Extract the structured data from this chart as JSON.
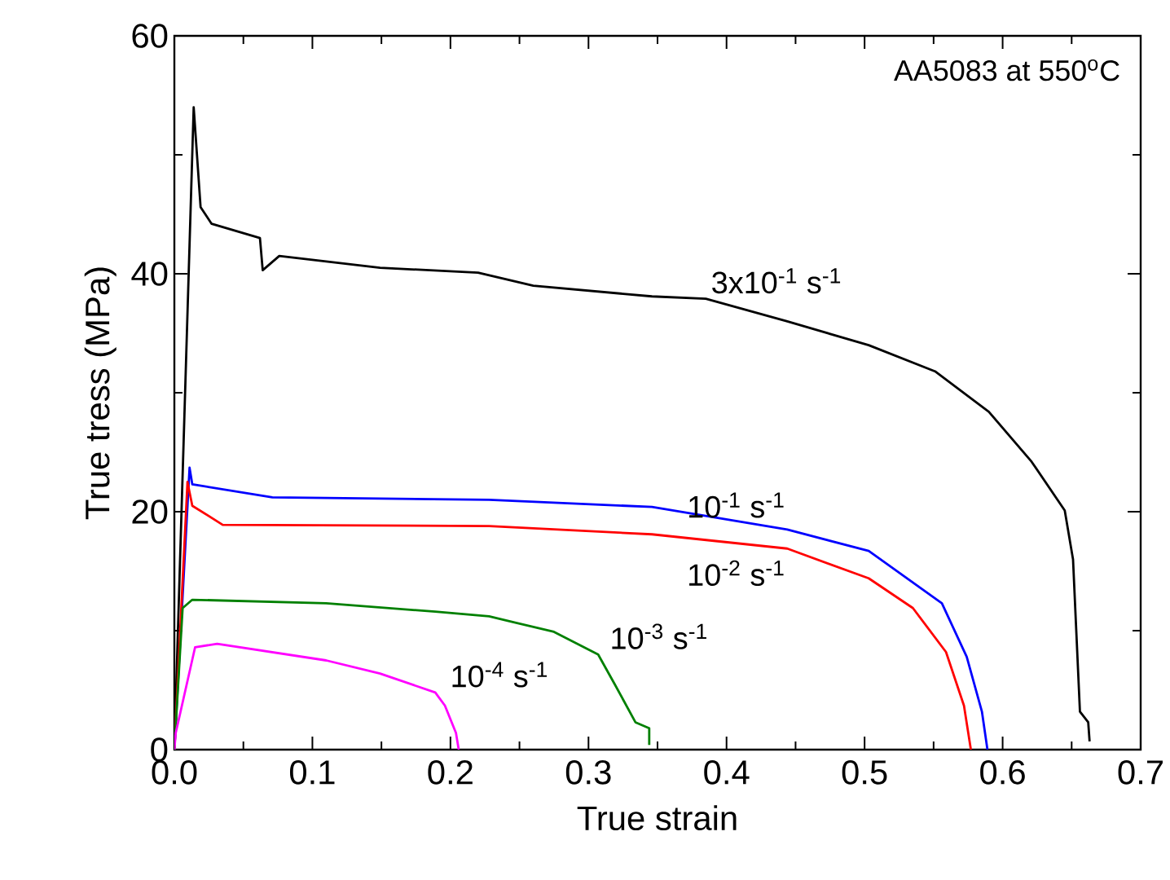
{
  "chart_data": {
    "type": "line",
    "xlabel": "True strain",
    "ylabel": "True tress (MPa)",
    "xlim": [
      0,
      0.7
    ],
    "ylim": [
      0,
      60
    ],
    "xticks": [
      {
        "value": 0,
        "label": "0.0"
      },
      0.1,
      0.2,
      0.3,
      0.4,
      0.5,
      0.6,
      0.7
    ],
    "yticks": [
      0,
      20,
      40,
      60
    ],
    "grid": false,
    "marker": "none",
    "line_style": "solid",
    "series": [
      {
        "name": "3x10$^{-1}$ s$^{-1}$",
        "color": "#000000",
        "x": [
          0,
          0.014,
          0.019,
          0.027,
          0.062,
          0.064,
          0.076,
          0.149,
          0.22,
          0.26,
          0.346,
          0.385,
          0.444,
          0.503,
          0.551,
          0.59,
          0.621,
          0.645,
          0.651,
          0.656,
          0.662,
          0.663
        ],
        "values": [
          0,
          54,
          45.6,
          44.2,
          43,
          40.3,
          41.5,
          40.5,
          40.1,
          39,
          38.1,
          37.9,
          36,
          34,
          31.8,
          28.4,
          24.2,
          20.1,
          16,
          3.2,
          2.3,
          0.7
        ]
      },
      {
        "name": "10$^{-1}$ s$^{-1}$",
        "color": "#0000ff",
        "x": [
          0,
          0.011,
          0.013,
          0.071,
          0.228,
          0.346,
          0.444,
          0.503,
          0.556,
          0.574,
          0.585,
          0.589
        ],
        "values": [
          0,
          23.7,
          22.3,
          21.2,
          21,
          20.4,
          18.5,
          16.7,
          12.3,
          7.8,
          3.2,
          0
        ]
      },
      {
        "name": "10$^{-2}$ s$^{-1}$",
        "color": "#ff0000",
        "x": [
          0,
          0.0095,
          0.013,
          0.035,
          0.228,
          0.346,
          0.444,
          0.503,
          0.535,
          0.559,
          0.572,
          0.577
        ],
        "values": [
          0,
          22.5,
          20.5,
          18.9,
          18.8,
          18.1,
          16.9,
          14.4,
          11.9,
          8.2,
          3.7,
          0
        ]
      },
      {
        "name": "10$^{-3}$ s$^{-1}$",
        "color": "#008000",
        "x": [
          0,
          0.006,
          0.013,
          0.11,
          0.189,
          0.228,
          0.275,
          0.307,
          0.319,
          0.334,
          0.344,
          0.344
        ],
        "values": [
          0,
          11.9,
          12.6,
          12.3,
          11.6,
          11.2,
          9.9,
          8,
          5.5,
          2.3,
          1.8,
          0.4
        ]
      },
      {
        "name": "10$^{-4}$ s$^{-1}$",
        "color": "#ff00ff",
        "x": [
          0,
          0.001,
          0.015,
          0.031,
          0.11,
          0.149,
          0.189,
          0.196,
          0.204,
          0.206
        ],
        "values": [
          0,
          1.4,
          8.6,
          8.9,
          7.5,
          6.4,
          4.8,
          3.7,
          1.4,
          0
        ]
      }
    ],
    "annotations": [
      "AA5083 at 550$^{o}$C"
    ]
  }
}
